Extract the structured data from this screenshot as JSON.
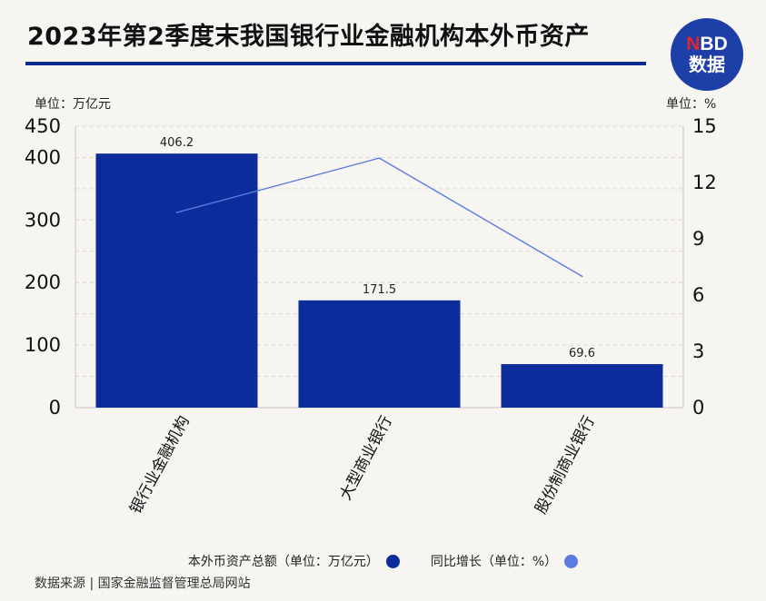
{
  "title": "2023年第2季度末我国银行业金融机构本外币资产",
  "logo": {
    "line1_red": "N",
    "line1_rest": "BD",
    "line2": "数据"
  },
  "unit_left": "单位：万亿元",
  "unit_right": "单位：%",
  "legend": [
    {
      "label": "本外币资产总额（单位：万亿元）",
      "color": "#0d2c9c"
    },
    {
      "label": "同比增长（单位：%）",
      "color": "#5b7be3"
    }
  ],
  "source": "数据来源 | 国家金融监督管理总局网站",
  "chart_data": {
    "type": "bar",
    "categories": [
      "银行业金融机构",
      "大型商业银行",
      "股份制商业银行"
    ],
    "series": [
      {
        "name": "本外币资产总额（单位：万亿元）",
        "type": "bar",
        "axis": "left",
        "values": [
          406.2,
          171.5,
          69.6
        ],
        "data_labels": [
          "406.2",
          "171.5",
          "69.6"
        ]
      },
      {
        "name": "同比增长（单位：%）",
        "type": "line",
        "axis": "right",
        "values": [
          10.4,
          13.3,
          7.0
        ]
      }
    ],
    "left_axis": {
      "ylim": [
        0,
        450
      ],
      "ticks": [
        0,
        100,
        200,
        300,
        400,
        450
      ]
    },
    "right_axis": {
      "ylim": [
        0,
        15
      ],
      "ticks": [
        0,
        3,
        6,
        9,
        12,
        15
      ]
    },
    "grid": true,
    "legend_position": "bottom"
  }
}
